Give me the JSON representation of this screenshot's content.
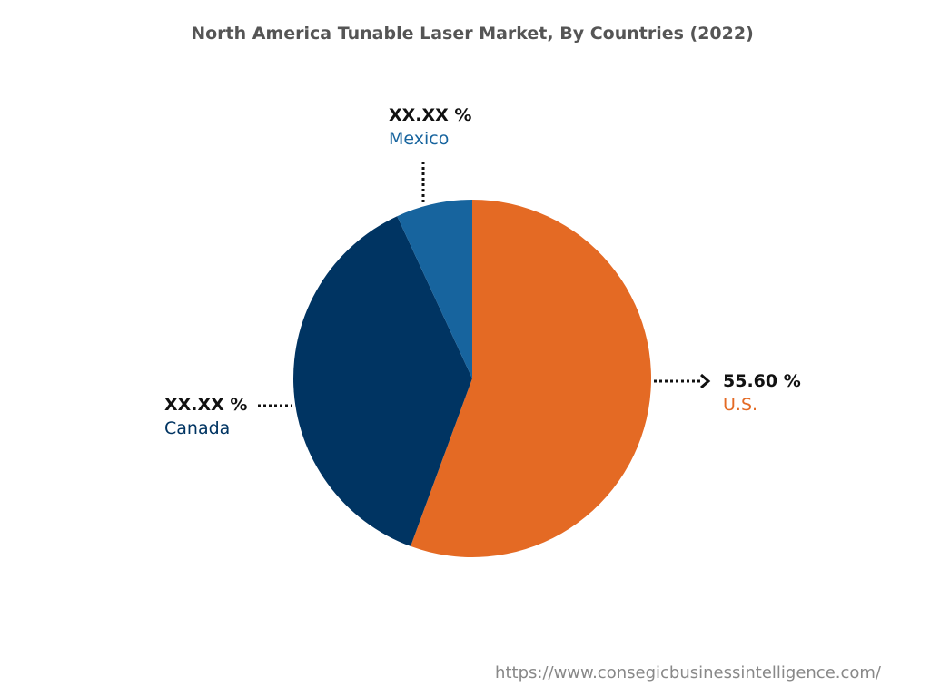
{
  "chart_data": {
    "type": "pie",
    "title": "North America Tunable Laser Market, By Countries (2022)",
    "start_angle": "12 o'clock, clockwise",
    "slices": [
      {
        "name": "U.S.",
        "value": 55.6,
        "label": "55.60 %",
        "color": "#E46A24"
      },
      {
        "name": "Canada",
        "value": 37.5,
        "label": "XX.XX %",
        "color": "#003462"
      },
      {
        "name": "Mexico",
        "value": 6.9,
        "label": "XX.XX %",
        "color": "#17649E"
      }
    ]
  },
  "footer": "https://www.consegicbusinessintelligence.com/"
}
